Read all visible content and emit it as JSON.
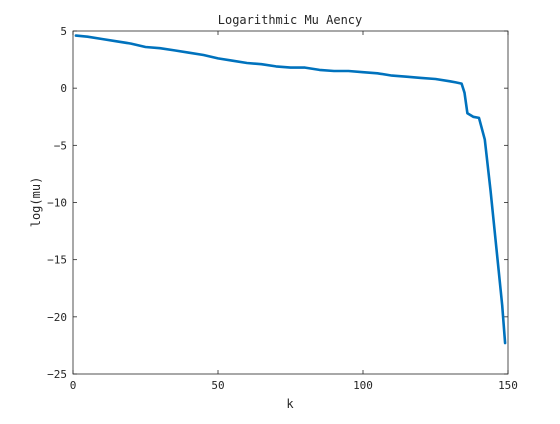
{
  "chart_data": {
    "type": "line",
    "title": "Logarithmic Mu Aency",
    "xlabel": "k",
    "ylabel": "log(mu)",
    "xlim": [
      0,
      150
    ],
    "ylim": [
      -25,
      5
    ],
    "xticks": [
      0,
      50,
      100,
      150
    ],
    "yticks": [
      5,
      0,
      -5,
      -10,
      -15,
      -20,
      -25
    ],
    "grid": false,
    "colors": {
      "line": "#0072BD",
      "axis": "#262626",
      "background": "#ffffff"
    },
    "series": [
      {
        "x": [
          1,
          5,
          10,
          15,
          20,
          25,
          30,
          35,
          40,
          45,
          50,
          55,
          60,
          65,
          70,
          75,
          80,
          85,
          90,
          95,
          100,
          105,
          110,
          115,
          120,
          125,
          130,
          132,
          134,
          135,
          136,
          138,
          140,
          142,
          144,
          146,
          148,
          149
        ],
        "y": [
          4.6,
          4.5,
          4.3,
          4.1,
          3.9,
          3.6,
          3.5,
          3.3,
          3.1,
          2.9,
          2.6,
          2.4,
          2.2,
          2.1,
          1.9,
          1.8,
          1.8,
          1.6,
          1.5,
          1.5,
          1.4,
          1.3,
          1.1,
          1.0,
          0.9,
          0.8,
          0.6,
          0.5,
          0.4,
          -0.4,
          -2.2,
          -2.5,
          -2.6,
          -4.5,
          -9.0,
          -14.0,
          -19.0,
          -22.3
        ]
      }
    ]
  }
}
